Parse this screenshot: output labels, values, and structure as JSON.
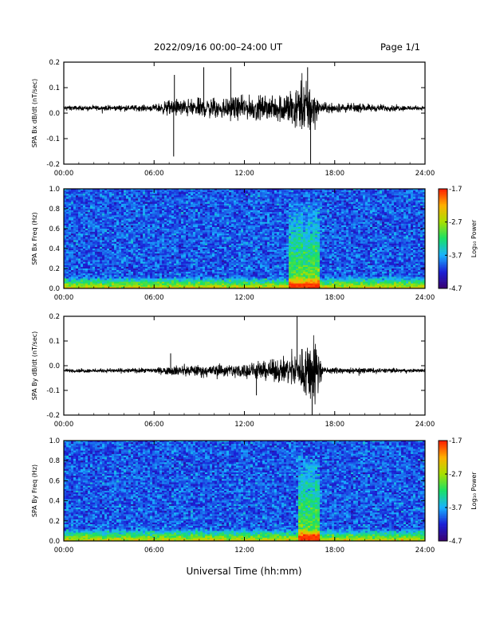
{
  "header": {
    "title": "2022/09/16  00:00–24:00 UT",
    "page": "Page 1/1"
  },
  "xaxis_caption": "Universal Time (hh:mm)",
  "colors": {
    "trace": "#000000",
    "colormap": [
      "#3a0070",
      "#1a1fd6",
      "#19b2ff",
      "#18e066",
      "#a8e000",
      "#ffb000",
      "#ff1a00"
    ]
  },
  "chart_data": [
    {
      "type": "line",
      "ylabel": "SPA Bx dB/dt (nT/sec)",
      "xlim_hours": [
        0,
        24
      ],
      "ylim": [
        -0.2,
        0.2
      ],
      "yticks": [
        "0.2",
        "0.1",
        "0.0",
        "-0.1",
        "-0.2"
      ],
      "xtick_labels": [
        "00:00",
        "06:00",
        "12:00",
        "18:00",
        "24:00"
      ],
      "series": [
        {
          "baseline": 0.02,
          "envelope": [
            {
              "hour": 0,
              "amp": 0.012
            },
            {
              "hour": 6,
              "amp": 0.018
            },
            {
              "hour": 7.2,
              "amp": 0.05
            },
            {
              "hour": 8.5,
              "amp": 0.05
            },
            {
              "hour": 10.5,
              "amp": 0.06
            },
            {
              "hour": 14,
              "amp": 0.07
            },
            {
              "hour": 15.5,
              "amp": 0.12
            },
            {
              "hour": 16.5,
              "amp": 0.16
            },
            {
              "hour": 17,
              "amp": 0.03
            },
            {
              "hour": 24,
              "amp": 0.012
            }
          ],
          "spikes": [
            {
              "hour": 7.35,
              "value": 0.15
            },
            {
              "hour": 7.3,
              "value": -0.17
            },
            {
              "hour": 9.3,
              "value": 0.18
            },
            {
              "hour": 11.1,
              "value": 0.18
            },
            {
              "hour": 16.4,
              "value": -0.2
            },
            {
              "hour": 16.2,
              "value": 0.18
            }
          ]
        }
      ]
    },
    {
      "type": "heatmap",
      "ylabel": "SPA Bx Freq (Hz)",
      "xlim_hours": [
        0,
        24
      ],
      "ylim": [
        0,
        1.0
      ],
      "yticks": [
        "1.0",
        "0.8",
        "0.6",
        "0.4",
        "0.2",
        "0.0"
      ],
      "xtick_labels": [
        "00:00",
        "06:00",
        "12:00",
        "18:00",
        "24:00"
      ],
      "colorbar": {
        "label": "Log₁₀ Power",
        "ticks": [
          "-1.7",
          "-2.7",
          "-3.7",
          "-4.7"
        ],
        "min": -4.7,
        "max": -1.7
      },
      "features": {
        "background_log_power": -4.0,
        "low_freq_log_power": -2.4,
        "burst_start_hour": 15.0,
        "burst_end_hour": 17.0,
        "burst_log_power": -1.8
      }
    },
    {
      "type": "line",
      "ylabel": "SPA By dB/dt (nT/sec)",
      "xlim_hours": [
        0,
        24
      ],
      "ylim": [
        -0.2,
        0.2
      ],
      "yticks": [
        "0.2",
        "0.1",
        "0.0",
        "-0.1",
        "-0.2"
      ],
      "xtick_labels": [
        "00:00",
        "06:00",
        "12:00",
        "18:00",
        "24:00"
      ],
      "series": [
        {
          "baseline": -0.02,
          "envelope": [
            {
              "hour": 0,
              "amp": 0.01
            },
            {
              "hour": 6,
              "amp": 0.015
            },
            {
              "hour": 7.5,
              "amp": 0.03
            },
            {
              "hour": 12,
              "amp": 0.04
            },
            {
              "hour": 14,
              "amp": 0.06
            },
            {
              "hour": 15.5,
              "amp": 0.1
            },
            {
              "hour": 16.4,
              "amp": 0.2
            },
            {
              "hour": 16.9,
              "amp": 0.2
            },
            {
              "hour": 17.2,
              "amp": 0.02
            },
            {
              "hour": 24,
              "amp": 0.01
            }
          ],
          "spikes": [
            {
              "hour": 7.1,
              "value": 0.05
            },
            {
              "hour": 15.5,
              "value": 0.2
            },
            {
              "hour": 16.5,
              "value": -0.2
            },
            {
              "hour": 12.8,
              "value": -0.12
            }
          ]
        }
      ]
    },
    {
      "type": "heatmap",
      "ylabel": "SPA By Freq (Hz)",
      "xlim_hours": [
        0,
        24
      ],
      "ylim": [
        0,
        1.0
      ],
      "yticks": [
        "1.0",
        "0.8",
        "0.6",
        "0.4",
        "0.2",
        "0.0"
      ],
      "xtick_labels": [
        "00:00",
        "06:00",
        "12:00",
        "18:00",
        "24:00"
      ],
      "colorbar": {
        "label": "Log₁₀ Power",
        "ticks": [
          "-1.7",
          "-2.7",
          "-3.7",
          "-4.7"
        ],
        "min": -4.7,
        "max": -1.7
      },
      "features": {
        "background_log_power": -4.0,
        "low_freq_log_power": -2.4,
        "burst_start_hour": 15.5,
        "burst_end_hour": 17.0,
        "burst_log_power": -1.8
      }
    }
  ]
}
